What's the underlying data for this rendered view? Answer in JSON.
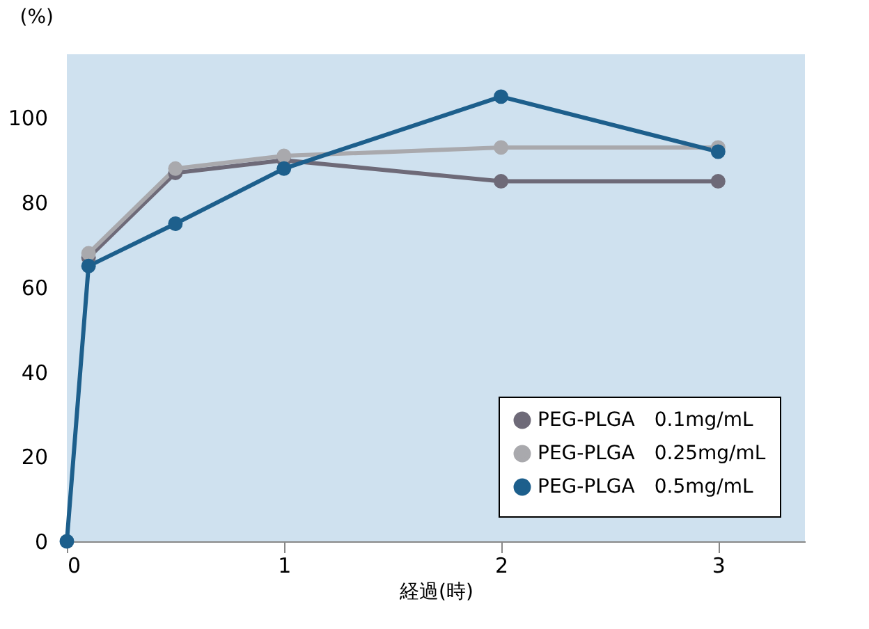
{
  "chart_data": {
    "type": "line",
    "xlabel": "経過(時)",
    "ylabel": "(%)",
    "xlim": [
      0,
      3.4
    ],
    "xticks": [
      0,
      1,
      2,
      3
    ],
    "ylim": [
      0,
      115
    ],
    "yticks": [
      0,
      20,
      40,
      60,
      80,
      100
    ],
    "grid": false,
    "legend": "bottom right",
    "marker": "circle",
    "line_style": "solid",
    "series": [
      {
        "name": "PEG-PLGA　0.1mg/mL",
        "color": "#6e6a78",
        "x": [
          0.1,
          0.5,
          1,
          2,
          3
        ],
        "values": [
          67,
          87,
          90,
          85,
          85
        ]
      },
      {
        "name": "PEG-PLGA　0.25mg/mL",
        "color": "#a9a9ad",
        "x": [
          0.1,
          0.5,
          1,
          2,
          3
        ],
        "values": [
          68,
          88,
          91,
          93,
          93
        ]
      },
      {
        "name": "PEG-PLGA　0.5mg/mL",
        "color": "#1d5f8c",
        "x": [
          0,
          0.1,
          0.5,
          1,
          2,
          3
        ],
        "values": [
          0,
          65,
          75,
          88,
          105,
          92
        ]
      }
    ]
  }
}
